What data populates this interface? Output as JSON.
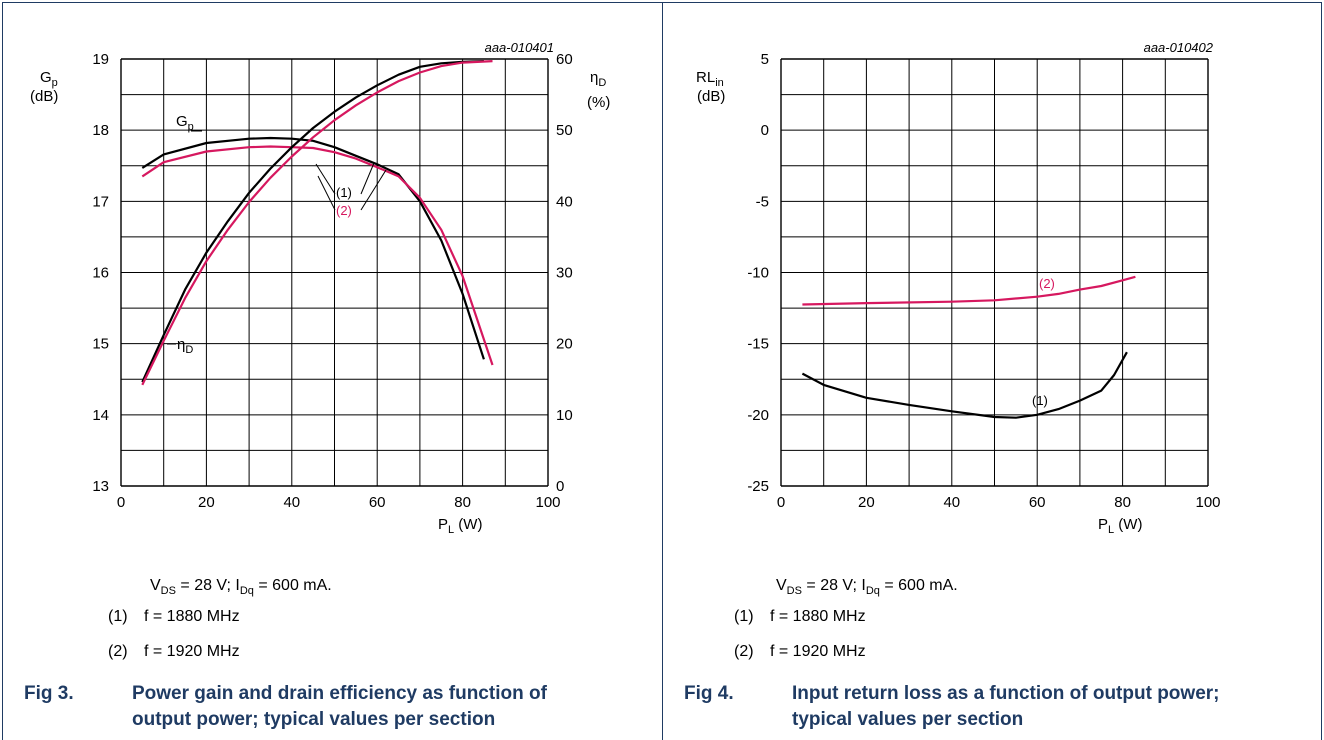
{
  "panels": [
    {
      "chart_id": "aaa-010401",
      "y_left_label": "Gp",
      "y_left_unit": "(dB)",
      "y_right_label": "ηD",
      "y_right_unit": "(%)",
      "x_label": "PL (W)",
      "condition_text": "VDS = 28 V; IDq = 600 mA.",
      "notes": [
        {
          "num": "(1)",
          "text": "f = 1880 MHz"
        },
        {
          "num": "(2)",
          "text": "f = 1920 MHz"
        }
      ],
      "caption_fig": "Fig 3.",
      "caption_title": "Power gain and drain efficiency as function of output power; typical values per section"
    },
    {
      "chart_id": "aaa-010402",
      "y_left_label": "RLin",
      "y_left_unit": "(dB)",
      "x_label": "PL (W)",
      "condition_text": "VDS = 28 V; IDq = 600 mA.",
      "notes": [
        {
          "num": "(1)",
          "text": "f = 1880 MHz"
        },
        {
          "num": "(2)",
          "text": "f = 1920 MHz"
        }
      ],
      "caption_fig": "Fig 4.",
      "caption_title": "Input return loss as a function of output power; typical values per section"
    }
  ],
  "chart_data": [
    {
      "type": "line",
      "x_ticks": [
        0,
        20,
        40,
        60,
        80,
        100
      ],
      "xlim": [
        0,
        100
      ],
      "ylim": [
        13,
        19
      ],
      "y_ticks": [
        13,
        14,
        15,
        16,
        17,
        18,
        19
      ],
      "y2lim": [
        0,
        60
      ],
      "y2_ticks": [
        0,
        10,
        20,
        30,
        40,
        50,
        60
      ],
      "grid": true,
      "colors": {
        "series1": "#000000",
        "series2": "#d6185f"
      },
      "series": [
        {
          "name": "Gp (1)",
          "axis": "left",
          "color": "#000000",
          "x": [
            5,
            10,
            20,
            30,
            35,
            40,
            45,
            50,
            55,
            60,
            65,
            70,
            75,
            80,
            85
          ],
          "y": [
            17.47,
            17.66,
            17.82,
            17.88,
            17.89,
            17.88,
            17.85,
            17.76,
            17.64,
            17.52,
            17.38,
            17.0,
            16.45,
            15.7,
            14.78
          ]
        },
        {
          "name": "Gp (2)",
          "axis": "left",
          "color": "#d6185f",
          "x": [
            5,
            10,
            20,
            30,
            35,
            40,
            45,
            50,
            55,
            60,
            65,
            70,
            75,
            80,
            87
          ],
          "y": [
            17.35,
            17.55,
            17.7,
            17.76,
            17.77,
            17.76,
            17.75,
            17.69,
            17.6,
            17.48,
            17.35,
            17.05,
            16.6,
            15.95,
            14.7
          ]
        },
        {
          "name": "ηD (1)",
          "axis": "right",
          "color": "#000000",
          "x": [
            5,
            10,
            15,
            20,
            25,
            30,
            35,
            40,
            45,
            50,
            55,
            60,
            65,
            70,
            75,
            80,
            85
          ],
          "y": [
            14.6,
            21.2,
            27.6,
            32.8,
            37.2,
            41.2,
            44.6,
            47.6,
            50.3,
            52.6,
            54.6,
            56.3,
            57.8,
            58.9,
            59.4,
            59.6,
            59.7
          ]
        },
        {
          "name": "ηD (2)",
          "axis": "right",
          "color": "#d6185f",
          "x": [
            5,
            10,
            15,
            20,
            25,
            30,
            35,
            40,
            45,
            50,
            55,
            60,
            65,
            70,
            75,
            80,
            87
          ],
          "y": [
            14.2,
            20.4,
            26.4,
            31.6,
            36.0,
            39.9,
            43.3,
            46.3,
            49.0,
            51.4,
            53.5,
            55.3,
            56.9,
            58.1,
            59.0,
            59.5,
            59.7
          ]
        }
      ],
      "annotations": [
        "Gp",
        "ηD",
        "(1)",
        "(2)"
      ]
    },
    {
      "type": "line",
      "x_ticks": [
        0,
        20,
        40,
        60,
        80,
        100
      ],
      "xlim": [
        0,
        100
      ],
      "ylim": [
        -25,
        5
      ],
      "y_ticks": [
        -25,
        -20,
        -15,
        -10,
        -5,
        0,
        5
      ],
      "grid": true,
      "series": [
        {
          "name": "(1)",
          "color": "#000000",
          "x": [
            5,
            10,
            20,
            30,
            40,
            50,
            55,
            60,
            65,
            70,
            75,
            78,
            81
          ],
          "y": [
            -17.1,
            -17.9,
            -18.8,
            -19.3,
            -19.75,
            -20.15,
            -20.2,
            -20.0,
            -19.6,
            -19.0,
            -18.3,
            -17.2,
            -15.6
          ]
        },
        {
          "name": "(2)",
          "color": "#d6185f",
          "x": [
            5,
            20,
            40,
            50,
            60,
            65,
            70,
            75,
            80,
            83
          ],
          "y": [
            -12.25,
            -12.15,
            -12.05,
            -11.95,
            -11.7,
            -11.5,
            -11.2,
            -10.95,
            -10.55,
            -10.3
          ]
        }
      ],
      "annotations": [
        "(1)",
        "(2)"
      ]
    }
  ]
}
